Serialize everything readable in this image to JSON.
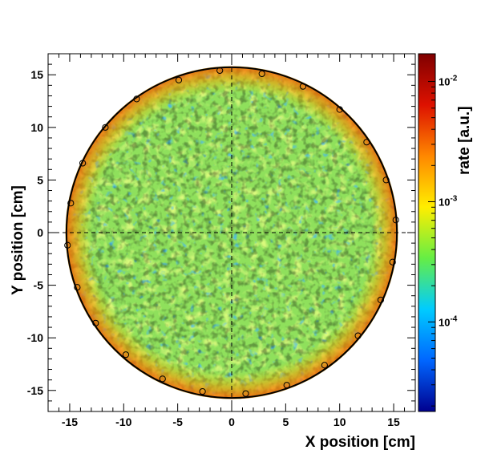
{
  "chart_data": {
    "type": "heatmap",
    "title": "",
    "xlabel": "X position [cm]",
    "ylabel": "Y position [cm]",
    "zlabel": "rate [a.u.]",
    "xlim": [
      -17,
      17
    ],
    "ylim": [
      -17,
      17
    ],
    "x_ticks": [
      "-15",
      "-10",
      "-5",
      "0",
      "5",
      "10",
      "15"
    ],
    "x_tick_values": [
      -15,
      -10,
      -5,
      0,
      5,
      10,
      15
    ],
    "y_ticks": [
      "-15",
      "-10",
      "-5",
      "0",
      "5",
      "10",
      "15"
    ],
    "y_tick_values": [
      -15,
      -10,
      -5,
      0,
      5,
      10,
      15
    ],
    "z_scale": "log",
    "zlim": [
      1.8e-05,
      0.017
    ],
    "z_ticks": [
      {
        "mantissa": "10",
        "exponent": "-2",
        "value": 0.01
      },
      {
        "mantissa": "10",
        "exponent": "-3",
        "value": 0.001
      },
      {
        "mantissa": "10",
        "exponent": "-4",
        "value": 0.0001
      }
    ],
    "palette": [
      "#00008f",
      "#0066ff",
      "#00ccff",
      "#66ee44",
      "#ffee00",
      "#ff8800",
      "#dd1100",
      "#800000"
    ],
    "disk_radius": 15.4,
    "typical_rate": 0.001,
    "fitted_circle": {
      "center": [
        0,
        0
      ],
      "radius": 15.3,
      "color": "#000000"
    },
    "crosshair": {
      "x": 0,
      "y": 0,
      "style": "dashed"
    },
    "edge_points": [
      [
        -1.1,
        15.4
      ],
      [
        2.8,
        15.1
      ],
      [
        6.6,
        13.9
      ],
      [
        10.0,
        11.7
      ],
      [
        12.5,
        8.6
      ],
      [
        14.3,
        5.0
      ],
      [
        15.2,
        1.2
      ],
      [
        14.9,
        -2.8
      ],
      [
        13.8,
        -6.4
      ],
      [
        11.7,
        -9.8
      ],
      [
        8.6,
        -12.6
      ],
      [
        5.1,
        -14.5
      ],
      [
        1.3,
        -15.3
      ],
      [
        -2.7,
        -15.1
      ],
      [
        -6.4,
        -13.9
      ],
      [
        -9.8,
        -11.6
      ],
      [
        -12.6,
        -8.6
      ],
      [
        -14.3,
        -5.2
      ],
      [
        -15.2,
        -1.2
      ],
      [
        -14.9,
        2.8
      ],
      [
        -13.8,
        6.6
      ],
      [
        -11.7,
        10.0
      ],
      [
        -8.8,
        12.7
      ],
      [
        -4.9,
        14.5
      ]
    ]
  }
}
